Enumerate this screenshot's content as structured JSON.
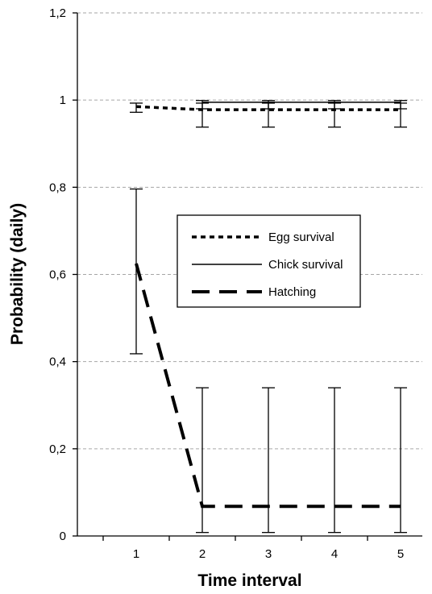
{
  "chart_data": {
    "type": "line",
    "title": "",
    "xlabel": "Time interval",
    "ylabel": "Probability (daily)",
    "x": [
      1,
      2,
      3,
      4,
      5
    ],
    "x_tick_labels": [
      "1",
      "2",
      "3",
      "4",
      "5"
    ],
    "ylim": [
      0,
      1.2
    ],
    "y_ticks": [
      0,
      0.2,
      0.4,
      0.6,
      0.8,
      1.0,
      1.2
    ],
    "y_tick_labels": [
      "0",
      "0,2",
      "0,4",
      "0,6",
      "0,8",
      "1",
      "1,2"
    ],
    "grid": "horizontal dashed",
    "legend_position": "center-right",
    "series": [
      {
        "name": "Egg survival",
        "style": "dotted",
        "values": [
          0.985,
          0.978,
          0.978,
          0.978,
          0.978
        ],
        "error_low": [
          0.972,
          0.938,
          0.938,
          0.938,
          0.938
        ],
        "error_high": [
          0.993,
          0.993,
          0.993,
          0.993,
          0.993
        ]
      },
      {
        "name": "Chick survival",
        "style": "solid",
        "x": [
          2,
          3,
          4,
          5
        ],
        "values": [
          0.995,
          0.995,
          0.995,
          0.995
        ],
        "error_low": [
          0.98,
          0.98,
          0.98,
          0.98
        ],
        "error_high": [
          0.999,
          0.999,
          0.999,
          0.999
        ]
      },
      {
        "name": "Hatching",
        "style": "dashed",
        "values": [
          0.625,
          0.068,
          0.068,
          0.068,
          0.068
        ],
        "error_low": [
          0.418,
          0.008,
          0.008,
          0.008,
          0.008
        ],
        "error_high": [
          0.796,
          0.34,
          0.34,
          0.34,
          0.34
        ]
      }
    ],
    "colors": {
      "series": "#000000",
      "grid": "#a6a6a6"
    }
  }
}
